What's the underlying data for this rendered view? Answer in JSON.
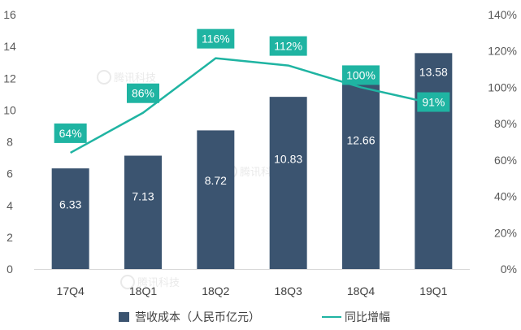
{
  "chart_data": {
    "type": "bar",
    "categories": [
      "17Q4",
      "18Q1",
      "18Q2",
      "18Q3",
      "18Q4",
      "19Q1"
    ],
    "series": [
      {
        "name": "营收成本（人民币亿元）",
        "type": "bar",
        "axis": "left",
        "values": [
          6.33,
          7.13,
          8.72,
          10.83,
          12.66,
          13.58
        ],
        "labels": [
          "6.33",
          "7.13",
          "8.72",
          "10.83",
          "12.66",
          "13.58"
        ],
        "color": "#3b5470"
      },
      {
        "name": "同比增幅",
        "type": "line",
        "axis": "right",
        "values": [
          64,
          86,
          116,
          112,
          100,
          91
        ],
        "labels": [
          "64%",
          "86%",
          "116%",
          "112%",
          "100%",
          "91%"
        ],
        "color": "#1fb4a2"
      }
    ],
    "y_left": {
      "ylim": [
        0,
        16
      ],
      "ticks": [
        "0",
        "2",
        "4",
        "6",
        "8",
        "10",
        "12",
        "14",
        "16"
      ]
    },
    "y_right": {
      "ylim": [
        0,
        140
      ],
      "ticks": [
        "0%",
        "20%",
        "40%",
        "60%",
        "80%",
        "100%",
        "120%",
        "140%"
      ]
    },
    "legend_position": "bottom",
    "grid": false,
    "watermark_text": "腾讯科技"
  }
}
